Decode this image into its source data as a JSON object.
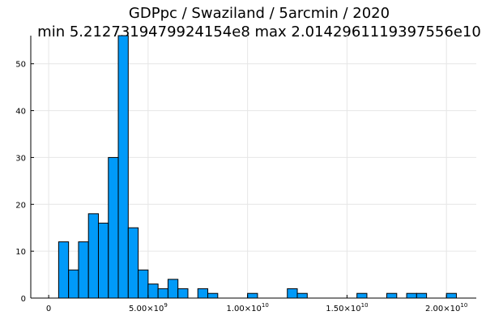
{
  "chart_data": {
    "type": "bar",
    "title_line1": "GDPpc / Swaziland / 5arcmin / 2020",
    "title_line2": "min 5.2127319479924154e8  max 2.0142961119397556e10",
    "xlabel": "",
    "ylabel": "",
    "xlim": [
      -900000000,
      21500000000
    ],
    "ylim": [
      0,
      56
    ],
    "grid": true,
    "legend": "none",
    "bar_color": "#009AF9",
    "bin_width": 500000000,
    "bins_start": [
      500000000,
      1000000000,
      1500000000,
      2000000000,
      2500000000,
      3000000000,
      3500000000,
      4000000000,
      4500000000,
      5000000000,
      5500000000,
      6000000000,
      6500000000,
      7500000000,
      8000000000,
      10000000000,
      12000000000,
      12500000000,
      15500000000,
      17000000000,
      18000000000,
      18500000000,
      20000000000
    ],
    "counts": [
      12,
      6,
      12,
      18,
      16,
      30,
      56,
      15,
      6,
      3,
      2,
      4,
      2,
      2,
      1,
      1,
      2,
      1,
      1,
      1,
      1,
      1,
      1
    ],
    "x_ticks": [
      {
        "value": 0,
        "mantissa": "0",
        "exp": ""
      },
      {
        "value": 5000000000,
        "mantissa": "5.00×10",
        "exp": "9"
      },
      {
        "value": 10000000000,
        "mantissa": "1.00×10",
        "exp": "10"
      },
      {
        "value": 15000000000,
        "mantissa": "1.50×10",
        "exp": "10"
      },
      {
        "value": 20000000000,
        "mantissa": "2.00×10",
        "exp": "10"
      }
    ],
    "y_ticks": [
      0,
      10,
      20,
      30,
      40,
      50
    ]
  }
}
